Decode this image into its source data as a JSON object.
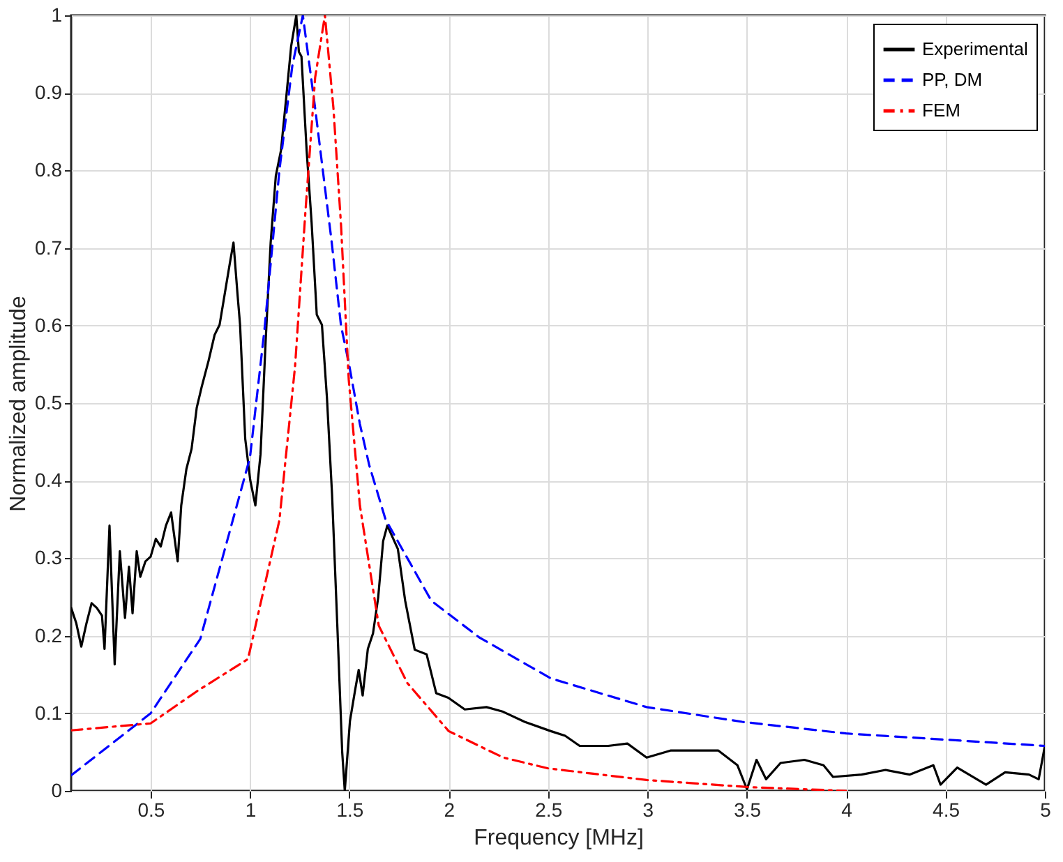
{
  "chart_data": {
    "type": "line",
    "xlabel": "Frequency [MHz]",
    "ylabel": "Normalized amplitude",
    "xlim": [
      0.1,
      5
    ],
    "xticks": [
      0.5,
      1,
      1.5,
      2,
      2.5,
      3,
      3.5,
      4,
      4.5,
      5
    ],
    "ylim": [
      0,
      1
    ],
    "yticks": [
      0,
      0.1,
      0.2,
      0.3,
      0.4,
      0.5,
      0.6,
      0.7,
      0.8,
      0.9,
      1
    ],
    "grid": true,
    "legend": "top right",
    "marker": "none",
    "series": [
      {
        "name": "Experimental",
        "color": "#000000",
        "line_style": "solid",
        "x": [
          0.1,
          0.126,
          0.151,
          0.177,
          0.203,
          0.229,
          0.255,
          0.268,
          0.293,
          0.319,
          0.345,
          0.371,
          0.391,
          0.409,
          0.43,
          0.448,
          0.474,
          0.5,
          0.526,
          0.551,
          0.577,
          0.603,
          0.636,
          0.654,
          0.68,
          0.706,
          0.732,
          0.757,
          0.791,
          0.822,
          0.847,
          0.873,
          0.899,
          0.917,
          0.937,
          0.95,
          0.976,
          1.001,
          1.027,
          1.053,
          1.079,
          1.104,
          1.13,
          1.156,
          1.182,
          1.207,
          1.233,
          1.246,
          1.259,
          1.285,
          1.31,
          1.336,
          1.362,
          1.387,
          1.413,
          1.439,
          1.464,
          1.477,
          1.503,
          1.529,
          1.547,
          1.567,
          1.593,
          1.619,
          1.645,
          1.67,
          1.691,
          1.744,
          1.781,
          1.829,
          1.889,
          1.937,
          1.998,
          2.081,
          2.19,
          2.274,
          2.382,
          2.514,
          2.586,
          2.659,
          2.803,
          2.899,
          2.996,
          3.116,
          3.237,
          3.357,
          3.453,
          3.501,
          3.549,
          3.597,
          3.67,
          3.79,
          3.886,
          3.934,
          4.078,
          4.198,
          4.319,
          4.439,
          4.475,
          4.559,
          4.704,
          4.8,
          4.92,
          4.969,
          5.0
        ],
        "values": [
          0.236,
          0.216,
          0.186,
          0.216,
          0.242,
          0.236,
          0.226,
          0.183,
          0.342,
          0.163,
          0.309,
          0.223,
          0.289,
          0.229,
          0.309,
          0.276,
          0.296,
          0.302,
          0.325,
          0.315,
          0.342,
          0.359,
          0.296,
          0.368,
          0.415,
          0.441,
          0.494,
          0.521,
          0.554,
          0.588,
          0.601,
          0.641,
          0.681,
          0.707,
          0.641,
          0.601,
          0.454,
          0.401,
          0.368,
          0.434,
          0.581,
          0.707,
          0.793,
          0.826,
          0.893,
          0.96,
          1.0,
          0.953,
          0.947,
          0.826,
          0.733,
          0.614,
          0.601,
          0.508,
          0.382,
          0.216,
          0.05,
          0.0,
          0.09,
          0.13,
          0.156,
          0.123,
          0.183,
          0.203,
          0.249,
          0.322,
          0.342,
          0.312,
          0.245,
          0.182,
          0.176,
          0.126,
          0.12,
          0.105,
          0.108,
          0.102,
          0.089,
          0.077,
          0.071,
          0.058,
          0.058,
          0.061,
          0.043,
          0.052,
          0.052,
          0.052,
          0.033,
          0.002,
          0.04,
          0.015,
          0.036,
          0.04,
          0.033,
          0.018,
          0.021,
          0.027,
          0.021,
          0.033,
          0.008,
          0.03,
          0.008,
          0.024,
          0.021,
          0.015,
          0.058
        ]
      },
      {
        "name": "PP, DM",
        "color": "#0000ff",
        "line_style": "dashed",
        "x": [
          0.1,
          0.5,
          0.75,
          1.0,
          1.073,
          1.148,
          1.213,
          1.266,
          1.328,
          1.41,
          1.458,
          1.5,
          1.553,
          1.6,
          1.682,
          1.913,
          2.153,
          2.514,
          2.996,
          3.477,
          4.0,
          5.0
        ],
        "values": [
          0.02,
          0.1,
          0.196,
          0.43,
          0.595,
          0.8,
          0.935,
          1.0,
          0.88,
          0.71,
          0.6,
          0.548,
          0.473,
          0.42,
          0.35,
          0.245,
          0.198,
          0.145,
          0.108,
          0.089,
          0.074,
          0.058
        ]
      },
      {
        "name": "FEM",
        "color": "#ff0000",
        "line_style": "dashdot",
        "x": [
          0.1,
          0.5,
          0.736,
          0.99,
          1.148,
          1.227,
          1.279,
          1.328,
          1.377,
          1.42,
          1.458,
          1.497,
          1.553,
          1.648,
          1.792,
          2.0,
          2.274,
          2.5,
          2.996,
          3.5,
          4.0
        ],
        "values": [
          0.078,
          0.087,
          0.129,
          0.17,
          0.349,
          0.548,
          0.747,
          0.92,
          1.0,
          0.88,
          0.73,
          0.53,
          0.368,
          0.213,
          0.139,
          0.077,
          0.043,
          0.029,
          0.014,
          0.005,
          0.0
        ]
      }
    ]
  }
}
